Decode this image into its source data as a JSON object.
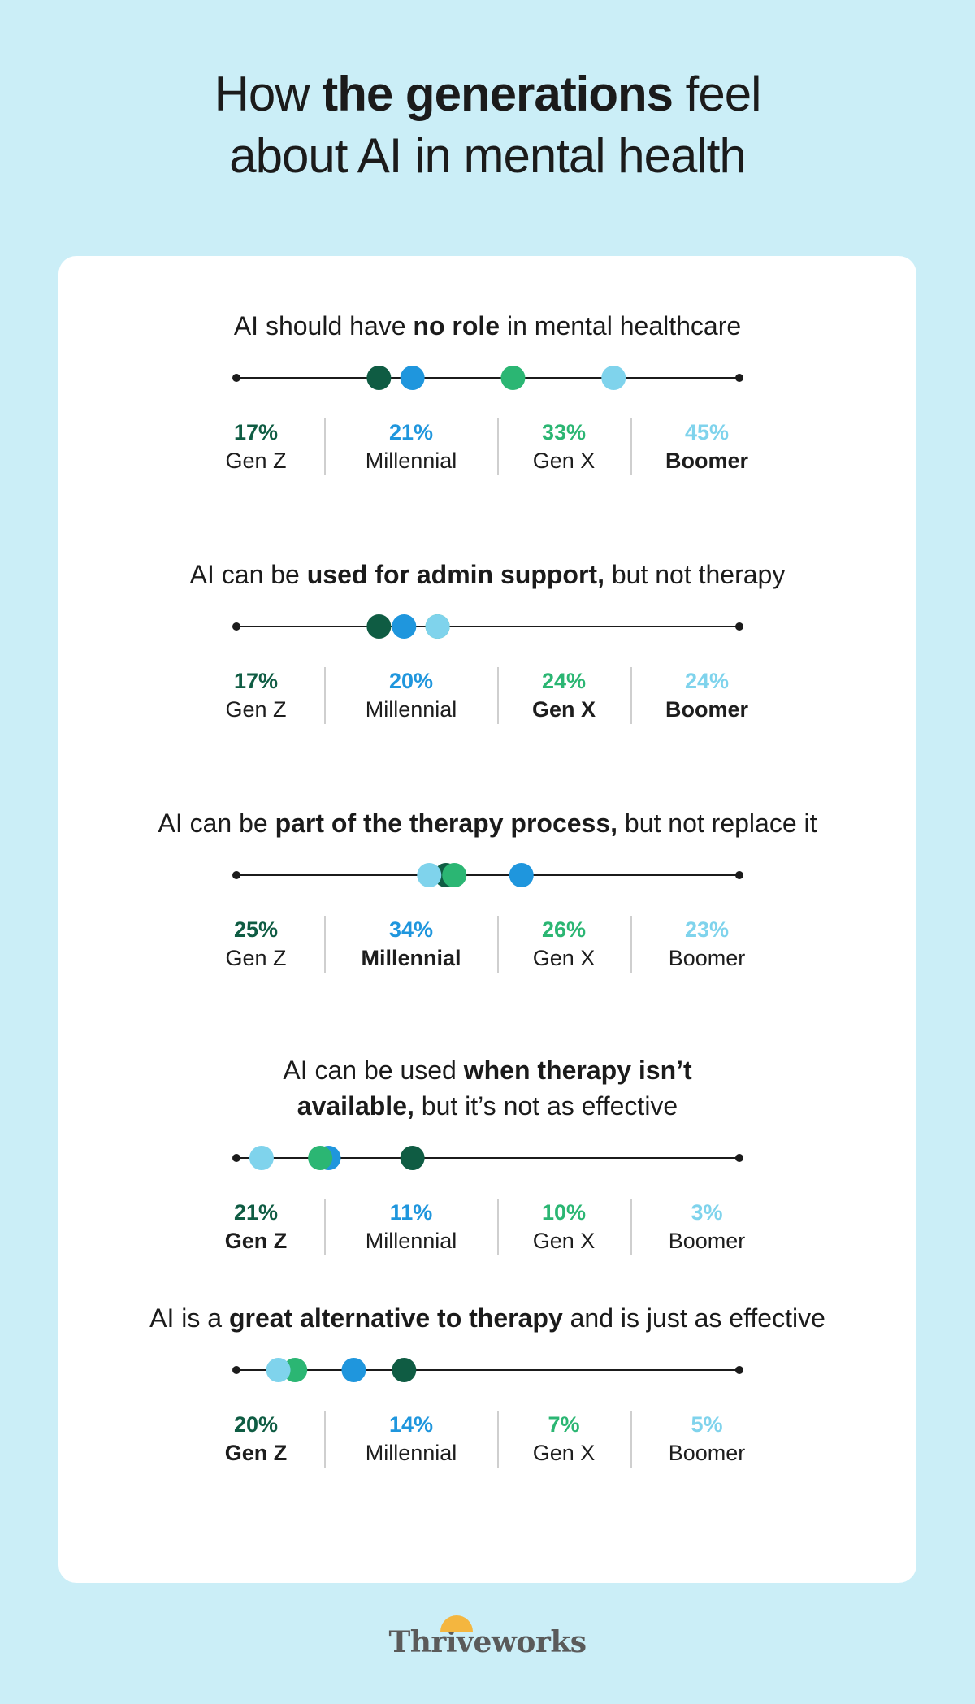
{
  "title": {
    "pre": "How ",
    "bold": "the generations",
    "post": " feel",
    "line2": "about AI in mental health"
  },
  "colors": {
    "gen_z": "#0f5c43",
    "millennial": "#1f96dd",
    "gen_x": "#2bb673",
    "boomer": "#7fd3ec",
    "line": "#1b1b1b",
    "background": "#cbeef7"
  },
  "chart_data": [
    {
      "type": "dot-plot",
      "title_parts": [
        {
          "text": "AI should have ",
          "bold": false
        },
        {
          "text": "no role",
          "bold": true
        },
        {
          "text": " in mental healthcare",
          "bold": false
        }
      ],
      "series": [
        {
          "name": "Gen Z",
          "value": 17,
          "label": "17%",
          "highlight": false
        },
        {
          "name": "Millennial",
          "value": 21,
          "label": "21%",
          "highlight": false
        },
        {
          "name": "Gen X",
          "value": 33,
          "label": "33%",
          "highlight": false
        },
        {
          "name": "Boomer",
          "value": 45,
          "label": "45%",
          "highlight": true
        }
      ]
    },
    {
      "type": "dot-plot",
      "title_parts": [
        {
          "text": "AI can be ",
          "bold": false
        },
        {
          "text": "used for admin support,",
          "bold": true
        },
        {
          "text": " but not therapy",
          "bold": false
        }
      ],
      "series": [
        {
          "name": "Gen Z",
          "value": 17,
          "label": "17%",
          "highlight": false
        },
        {
          "name": "Millennial",
          "value": 20,
          "label": "20%",
          "highlight": false
        },
        {
          "name": "Gen X",
          "value": 24,
          "label": "24%",
          "highlight": true
        },
        {
          "name": "Boomer",
          "value": 24,
          "label": "24%",
          "highlight": true
        }
      ]
    },
    {
      "type": "dot-plot",
      "title_parts": [
        {
          "text": "AI can be ",
          "bold": false
        },
        {
          "text": "part of the therapy process,",
          "bold": true
        },
        {
          "text": " but not replace it",
          "bold": false
        }
      ],
      "series": [
        {
          "name": "Gen Z",
          "value": 25,
          "label": "25%",
          "highlight": false
        },
        {
          "name": "Millennial",
          "value": 34,
          "label": "34%",
          "highlight": true
        },
        {
          "name": "Gen X",
          "value": 26,
          "label": "26%",
          "highlight": false
        },
        {
          "name": "Boomer",
          "value": 23,
          "label": "23%",
          "highlight": false
        }
      ]
    },
    {
      "type": "dot-plot",
      "title_parts": [
        {
          "text": "AI can be used ",
          "bold": false
        },
        {
          "text": "when therapy isn’t",
          "bold": true
        },
        {
          "text": "\n",
          "bold": false
        },
        {
          "text": "available,",
          "bold": true
        },
        {
          "text": " but it’s not as effective",
          "bold": false
        }
      ],
      "series": [
        {
          "name": "Gen Z",
          "value": 21,
          "label": "21%",
          "highlight": true
        },
        {
          "name": "Millennial",
          "value": 11,
          "label": "11%",
          "highlight": false
        },
        {
          "name": "Gen X",
          "value": 10,
          "label": "10%",
          "highlight": false
        },
        {
          "name": "Boomer",
          "value": 3,
          "label": "3%",
          "highlight": false
        }
      ]
    },
    {
      "type": "dot-plot",
      "title_parts": [
        {
          "text": "AI is a ",
          "bold": false
        },
        {
          "text": "great alternative to therapy",
          "bold": true
        },
        {
          "text": " and is just as effective",
          "bold": false
        }
      ],
      "series": [
        {
          "name": "Gen Z",
          "value": 20,
          "label": "20%",
          "highlight": true
        },
        {
          "name": "Millennial",
          "value": 14,
          "label": "14%",
          "highlight": false
        },
        {
          "name": "Gen X",
          "value": 7,
          "label": "7%",
          "highlight": false
        },
        {
          "name": "Boomer",
          "value": 5,
          "label": "5%",
          "highlight": false
        }
      ]
    }
  ],
  "logo": {
    "text": "Thriveworks"
  }
}
